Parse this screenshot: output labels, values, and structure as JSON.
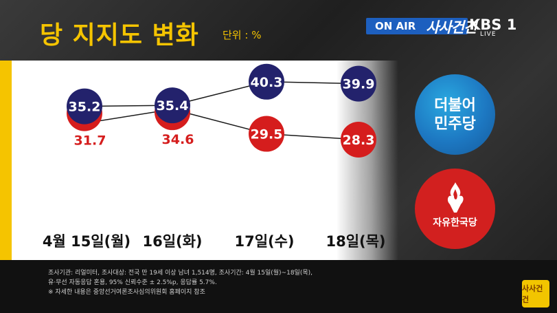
{
  "header": {
    "title": "당 지지도 변화",
    "unit": "단위 : %"
  },
  "broadcast": {
    "on_air": "ON AIR",
    "program": "사사건건",
    "channel": "KBS 1",
    "live": "LIVE",
    "corner_logo": "사사건건"
  },
  "legend": {
    "blue_party": "더불어\n민주당",
    "red_party": "자유한국당"
  },
  "colors": {
    "blue_party": "#23226c",
    "red_party": "#d51d1d",
    "accent": "#f5c400"
  },
  "chart_data": {
    "type": "line",
    "title": "당 지지도 변화",
    "unit": "%",
    "categories": [
      "4월 15일(월)",
      "16일(화)",
      "17일(수)",
      "18일(목)"
    ],
    "series": [
      {
        "name": "더불어민주당",
        "values": [
          35.2,
          35.4,
          40.3,
          39.9
        ],
        "color": "#23226c"
      },
      {
        "name": "자유한국당",
        "values": [
          31.7,
          34.6,
          29.5,
          28.3
        ],
        "color": "#d51d1d"
      }
    ],
    "data_labels": {
      "blue": [
        "35.2",
        "35.4",
        "40.3",
        "39.9"
      ],
      "red": [
        "31.7",
        "34.6",
        "29.5",
        "28.3"
      ]
    },
    "grid": false,
    "legend_position": "right"
  },
  "footnotes": [
    "조사기관: 리얼미터, 조사대상: 전국 만 19세 이상 남녀 1,514명, 조사기간: 4월 15일(월)~18일(목),",
    "유·무선 자동응답 혼용, 95% 신뢰수준 ± 2.5%p, 응답률 5.7%.",
    "※ 자세한 내용은 중앙선거여론조사심의위원회 홈페이지 참조"
  ]
}
